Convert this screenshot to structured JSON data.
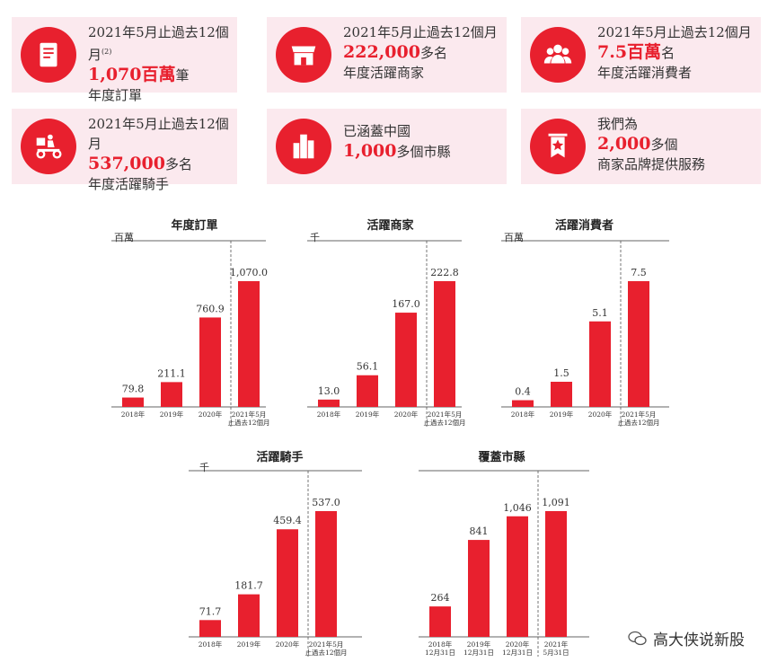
{
  "colors": {
    "accent": "#e8202e",
    "card_bg": "#fbe9ee"
  },
  "cards": [
    {
      "icon": "receipt-icon",
      "line1": "2021年5月止過去12個月",
      "sup": "(2)",
      "big": "1,070百萬",
      "suffix": "筆",
      "line3": "年度訂單"
    },
    {
      "icon": "storefront-icon",
      "line1": "2021年5月止過去12個月",
      "sup": "",
      "big": "222,000",
      "suffix": "多名",
      "line3": "年度活躍商家"
    },
    {
      "icon": "users-icon",
      "line1": "2021年5月止過去12個月",
      "sup": "",
      "big": "7.5百萬",
      "suffix": "名",
      "line3": "年度活躍消費者"
    },
    {
      "icon": "delivery-scooter-icon",
      "line1": "2021年5月止過去12個月",
      "sup": "",
      "big": "537,000",
      "suffix": "多名",
      "line3": "年度活躍騎手"
    },
    {
      "icon": "buildings-icon",
      "line1": "已涵蓋中國",
      "sup": "",
      "big": "1,000",
      "suffix": "多個市縣",
      "line3": ""
    },
    {
      "icon": "banner-star-icon",
      "line1": "我們為",
      "sup": "",
      "big": "2,000",
      "suffix": "多個",
      "line3": "商家品牌提供服務"
    }
  ],
  "chart_data": [
    {
      "type": "bar",
      "title": "年度訂單",
      "unit": "百萬",
      "categories": [
        "2018年",
        "2019年",
        "2020年",
        "2021年5月|止過去12個月"
      ],
      "values": [
        79.8,
        211.1,
        760.9,
        1070.0
      ],
      "labels": [
        "79.8",
        "211.1",
        "760.9",
        "1,070.0"
      ]
    },
    {
      "type": "bar",
      "title": "活躍商家",
      "unit": "千",
      "categories": [
        "2018年",
        "2019年",
        "2020年",
        "2021年5月|止過去12個月"
      ],
      "values": [
        13.0,
        56.1,
        167.0,
        222.8
      ],
      "labels": [
        "13.0",
        "56.1",
        "167.0",
        "222.8"
      ]
    },
    {
      "type": "bar",
      "title": "活躍消費者",
      "unit": "百萬",
      "categories": [
        "2018年",
        "2019年",
        "2020年",
        "2021年5月|止過去12個月"
      ],
      "values": [
        0.4,
        1.5,
        5.1,
        7.5
      ],
      "labels": [
        "0.4",
        "1.5",
        "5.1",
        "7.5"
      ]
    },
    {
      "type": "bar",
      "title": "活躍騎手",
      "unit": "千",
      "categories": [
        "2018年",
        "2019年",
        "2020年",
        "2021年5月|止過去12個月"
      ],
      "values": [
        71.7,
        181.7,
        459.4,
        537.0
      ],
      "labels": [
        "71.7",
        "181.7",
        "459.4",
        "537.0"
      ]
    },
    {
      "type": "bar",
      "title": "覆蓋市縣",
      "unit": "",
      "categories": [
        "2018年|12月31日",
        "2019年|12月31日",
        "2020年|12月31日",
        "2021年|5月31日"
      ],
      "values": [
        264,
        841,
        1046,
        1091
      ],
      "labels": [
        "264",
        "841",
        "1,046",
        "1,091"
      ]
    }
  ],
  "watermark": {
    "text": "高大侠说新股"
  }
}
